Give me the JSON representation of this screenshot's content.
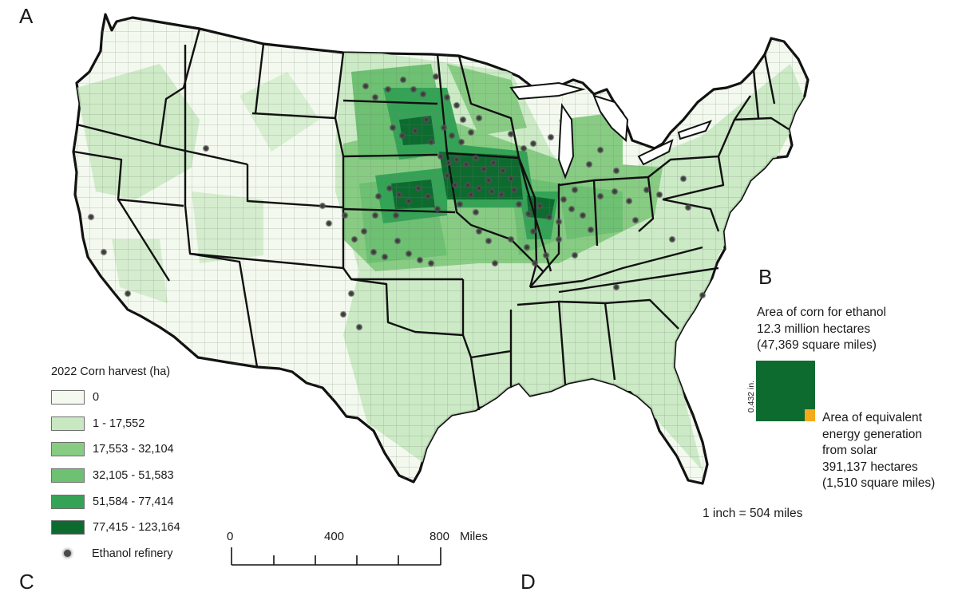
{
  "panels": {
    "a": "A",
    "b": "B",
    "c": "C",
    "d": "D"
  },
  "legend": {
    "title": "2022 Corn harvest (ha)",
    "classes": [
      {
        "label": "0",
        "color": "#f3f9ee"
      },
      {
        "label": "1 - 17,552",
        "color": "#c7e8c0"
      },
      {
        "label": "17,553 - 32,104",
        "color": "#88cc84"
      },
      {
        "label": "32,105 - 51,583",
        "color": "#6ec072"
      },
      {
        "label": "51,584 - 77,414",
        "color": "#35a356"
      },
      {
        "label": "77,415 - 123,164",
        "color": "#0e6b30"
      }
    ],
    "refinery_label": "Ethanol refinery"
  },
  "scalebar": {
    "ticks": [
      "0",
      "400",
      "800"
    ],
    "unit": "Miles"
  },
  "comparison": {
    "corn_title": "Area of corn for ethanol",
    "corn_hectares": "12.3 million hectares",
    "corn_sqmi": "(47,369 square miles)",
    "side_length": "0.432 in.",
    "solar_line1": "Area of equivalent",
    "solar_line2": "energy generation",
    "solar_line3": "from solar",
    "solar_hectares": "391,137 hectares",
    "solar_sqmi": "(1,510 square miles)",
    "scale_note": "1 inch = 504 miles",
    "corn_color": "#0e6b30",
    "solar_color": "#f6a91a"
  },
  "refinery_count_shown": 105
}
